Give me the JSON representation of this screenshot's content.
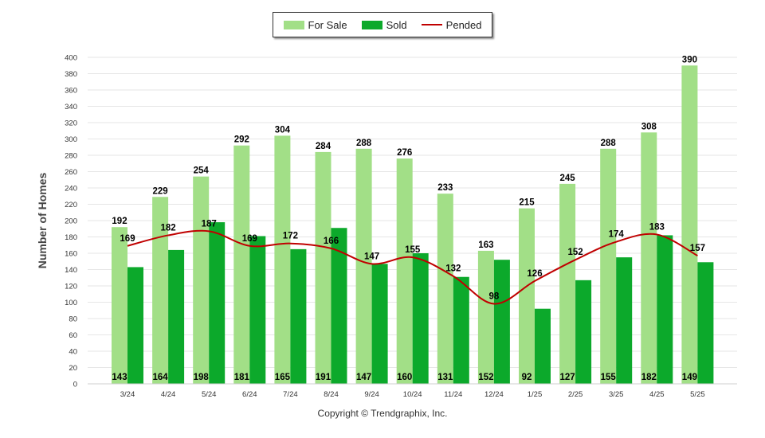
{
  "chart_data": {
    "type": "bar",
    "categories": [
      "3/24",
      "4/24",
      "5/24",
      "6/24",
      "7/24",
      "8/24",
      "9/24",
      "10/24",
      "11/24",
      "12/24",
      "1/25",
      "2/25",
      "3/25",
      "4/25",
      "5/25"
    ],
    "series": [
      {
        "name": "For Sale",
        "kind": "bar",
        "color": "#a2df87",
        "values": [
          192,
          229,
          254,
          292,
          304,
          284,
          288,
          276,
          233,
          163,
          215,
          245,
          288,
          308,
          390
        ]
      },
      {
        "name": "Sold",
        "kind": "bar",
        "color": "#0ca92b",
        "values": [
          143,
          164,
          198,
          181,
          165,
          191,
          147,
          160,
          131,
          152,
          92,
          127,
          155,
          182,
          149
        ]
      },
      {
        "name": "Pended",
        "kind": "line",
        "color": "#c00000",
        "values": [
          169,
          182,
          187,
          169,
          172,
          166,
          147,
          155,
          132,
          98,
          126,
          152,
          174,
          183,
          157
        ]
      }
    ],
    "ylabel": "Number of Homes",
    "ylim": [
      0,
      400
    ],
    "yticks": [
      0,
      20,
      40,
      60,
      80,
      100,
      120,
      140,
      160,
      180,
      200,
      220,
      240,
      260,
      280,
      300,
      320,
      340,
      360,
      380,
      400
    ],
    "grid": true,
    "legend": "top-center"
  },
  "footer": "Copyright © Trendgraphix, Inc."
}
